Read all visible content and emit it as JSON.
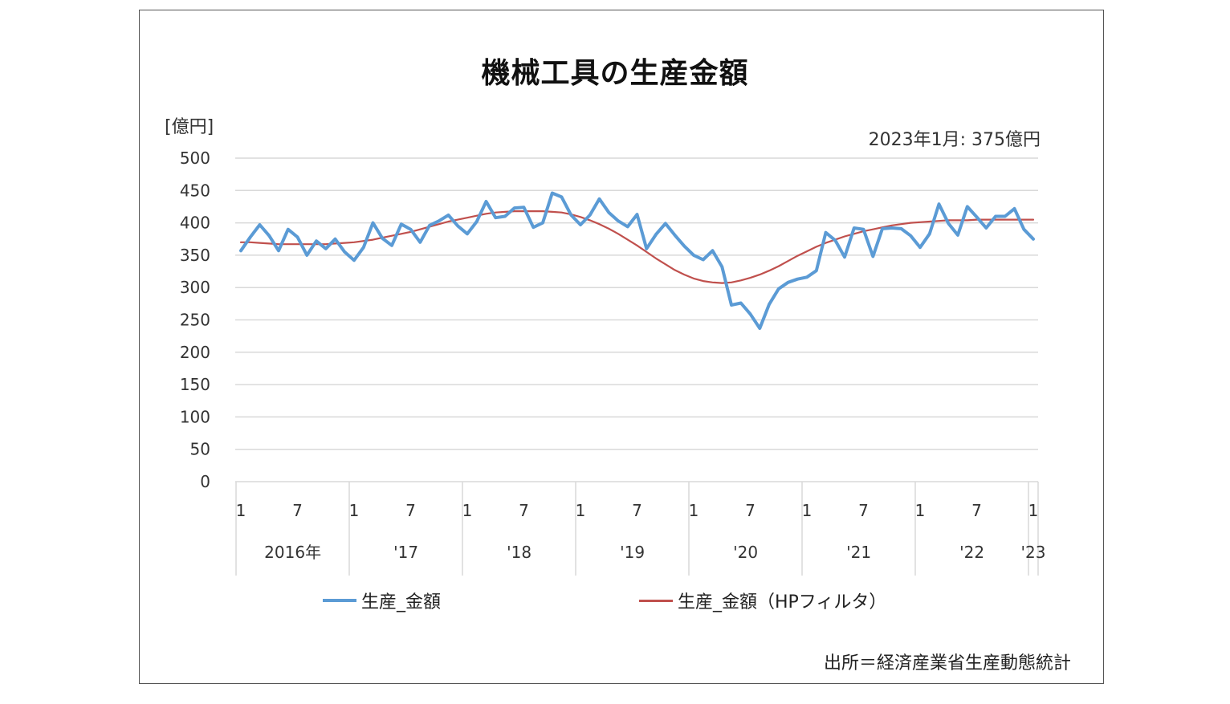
{
  "chart_data": {
    "type": "line",
    "title": "機械工具の生産金額",
    "ylabel": "[億円]",
    "annotation": "2023年1月: 375億円",
    "source": "出所＝経済産業省生産動態統計",
    "ylim": [
      0,
      500
    ],
    "yticks": [
      0,
      50,
      100,
      150,
      200,
      250,
      300,
      350,
      400,
      450,
      500
    ],
    "grid": true,
    "legend_position": "bottom",
    "x": [
      "2016-01",
      "2016-02",
      "2016-03",
      "2016-04",
      "2016-05",
      "2016-06",
      "2016-07",
      "2016-08",
      "2016-09",
      "2016-10",
      "2016-11",
      "2016-12",
      "2017-01",
      "2017-02",
      "2017-03",
      "2017-04",
      "2017-05",
      "2017-06",
      "2017-07",
      "2017-08",
      "2017-09",
      "2017-10",
      "2017-11",
      "2017-12",
      "2018-01",
      "2018-02",
      "2018-03",
      "2018-04",
      "2018-05",
      "2018-06",
      "2018-07",
      "2018-08",
      "2018-09",
      "2018-10",
      "2018-11",
      "2018-12",
      "2019-01",
      "2019-02",
      "2019-03",
      "2019-04",
      "2019-05",
      "2019-06",
      "2019-07",
      "2019-08",
      "2019-09",
      "2019-10",
      "2019-11",
      "2019-12",
      "2020-01",
      "2020-02",
      "2020-03",
      "2020-04",
      "2020-05",
      "2020-06",
      "2020-07",
      "2020-08",
      "2020-09",
      "2020-10",
      "2020-11",
      "2020-12",
      "2021-01",
      "2021-02",
      "2021-03",
      "2021-04",
      "2021-05",
      "2021-06",
      "2021-07",
      "2021-08",
      "2021-09",
      "2021-10",
      "2021-11",
      "2021-12",
      "2022-01",
      "2022-02",
      "2022-03",
      "2022-04",
      "2022-05",
      "2022-06",
      "2022-07",
      "2022-08",
      "2022-09",
      "2022-10",
      "2022-11",
      "2022-12",
      "2023-01"
    ],
    "month_tick_labels": [
      {
        "index": 0,
        "label": "1"
      },
      {
        "index": 6,
        "label": "7"
      },
      {
        "index": 12,
        "label": "1"
      },
      {
        "index": 18,
        "label": "7"
      },
      {
        "index": 24,
        "label": "1"
      },
      {
        "index": 30,
        "label": "7"
      },
      {
        "index": 36,
        "label": "1"
      },
      {
        "index": 42,
        "label": "7"
      },
      {
        "index": 48,
        "label": "1"
      },
      {
        "index": 54,
        "label": "7"
      },
      {
        "index": 60,
        "label": "1"
      },
      {
        "index": 66,
        "label": "7"
      },
      {
        "index": 72,
        "label": "1"
      },
      {
        "index": 78,
        "label": "7"
      },
      {
        "index": 84,
        "label": "1"
      }
    ],
    "year_labels": [
      {
        "start": 0,
        "end": 12,
        "label": "2016年"
      },
      {
        "start": 12,
        "end": 24,
        "label": "'17"
      },
      {
        "start": 24,
        "end": 36,
        "label": "'18"
      },
      {
        "start": 36,
        "end": 48,
        "label": "'19"
      },
      {
        "start": 48,
        "end": 60,
        "label": "'20"
      },
      {
        "start": 60,
        "end": 72,
        "label": "'21"
      },
      {
        "start": 72,
        "end": 84,
        "label": "'22"
      },
      {
        "start": 84,
        "end": 85,
        "label": "'23"
      }
    ],
    "series": [
      {
        "name": "生産_金額",
        "color": "#5B9BD5",
        "values": [
          357,
          378,
          397,
          380,
          357,
          390,
          378,
          350,
          372,
          360,
          375,
          355,
          342,
          362,
          400,
          376,
          365,
          398,
          390,
          370,
          396,
          403,
          412,
          395,
          383,
          402,
          433,
          408,
          410,
          423,
          424,
          393,
          400,
          446,
          440,
          412,
          397,
          412,
          437,
          416,
          403,
          394,
          413,
          360,
          382,
          399,
          381,
          364,
          350,
          343,
          357,
          332,
          273,
          276,
          259,
          237,
          274,
          298,
          308,
          313,
          316,
          326,
          385,
          373,
          347,
          392,
          390,
          348,
          391,
          392,
          391,
          380,
          362,
          383,
          429,
          399,
          381,
          425,
          409,
          392,
          410,
          410,
          422,
          390,
          375
        ]
      },
      {
        "name": "生産_金額（HPフィルタ）",
        "color": "#C0504D",
        "values": [
          370,
          370,
          369,
          368,
          367,
          367,
          367,
          367,
          367,
          367,
          368,
          369,
          370,
          372,
          374,
          377,
          380,
          383,
          386,
          390,
          394,
          398,
          402,
          405,
          408,
          411,
          414,
          416,
          417,
          418,
          418,
          418,
          418,
          417,
          416,
          413,
          409,
          404,
          398,
          391,
          383,
          374,
          365,
          355,
          345,
          336,
          327,
          320,
          314,
          310,
          308,
          307,
          308,
          311,
          315,
          320,
          326,
          333,
          341,
          349,
          356,
          363,
          369,
          374,
          379,
          383,
          387,
          390,
          393,
          396,
          398,
          400,
          401,
          402,
          403,
          404,
          404,
          404,
          405,
          405,
          405,
          405,
          405,
          405,
          405
        ]
      }
    ]
  }
}
